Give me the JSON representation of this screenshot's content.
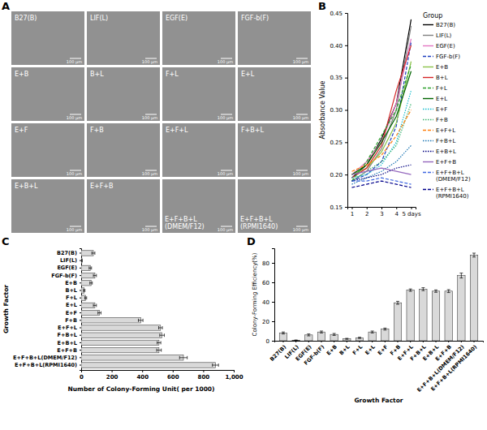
{
  "image_panel": {
    "title": "A",
    "labels": [
      "B27(B)",
      "LIF(L)",
      "EGF(E)",
      "FGF-b(F)",
      "E+B",
      "B+L",
      "F+L",
      "E+L",
      "E+F",
      "F+B",
      "E+F+L",
      "F+B+L",
      "E+B+L",
      "E+F+B",
      "E+F+B+L (DMEM/F12)",
      "E+F+B+L (RPMI1640)"
    ],
    "scale_bar": "100 μm"
  },
  "chart_data": [
    {
      "type": "line",
      "title": "B",
      "ylabel": "Absorbance Value",
      "legend_title": "Group",
      "legend": "right",
      "x": [
        1,
        2,
        3,
        4,
        5
      ],
      "xlim": [
        0.7,
        5.3
      ],
      "xticks": [
        1,
        2,
        3,
        4,
        {
          "value": 5,
          "label": "5 days"
        }
      ],
      "ylim": [
        0.15,
        0.45
      ],
      "yticks": [
        0.15,
        {
          "value": 0.2,
          "label": "0.20"
        },
        0.25,
        {
          "value": 0.3,
          "label": "0.30"
        },
        0.35,
        {
          "value": 0.4,
          "label": "0.40"
        },
        0.45
      ],
      "series": [
        {
          "name": "B27(B)",
          "color": "#000000",
          "line_style": "solid",
          "values": [
            0.195,
            0.215,
            0.255,
            0.31,
            0.44
          ]
        },
        {
          "name": "LIF(L)",
          "color": "#808080",
          "line_style": "solid",
          "values": [
            0.19,
            0.205,
            0.24,
            0.3,
            0.43
          ]
        },
        {
          "name": "EGF(E)",
          "color": "#e377c2",
          "line_style": "solid",
          "values": [
            0.2,
            0.22,
            0.25,
            0.31,
            0.41
          ]
        },
        {
          "name": "FGF-b(F)",
          "color": "#1f3fbf",
          "line_style": "dashed",
          "values": [
            0.19,
            0.2,
            0.22,
            0.275,
            0.405
          ]
        },
        {
          "name": "E+B",
          "color": "#8bc34a",
          "line_style": "solid",
          "values": [
            0.2,
            0.21,
            0.235,
            0.28,
            0.375
          ]
        },
        {
          "name": "B+L",
          "color": "#d62728",
          "line_style": "solid",
          "values": [
            0.195,
            0.21,
            0.245,
            0.33,
            0.4
          ]
        },
        {
          "name": "F+L",
          "color": "#2ca02c",
          "line_style": "dashed",
          "values": [
            0.19,
            0.22,
            0.26,
            0.3,
            0.37
          ]
        },
        {
          "name": "E+L",
          "color": "#006400",
          "line_style": "solid",
          "values": [
            0.2,
            0.215,
            0.25,
            0.29,
            0.36
          ]
        },
        {
          "name": "E+F",
          "color": "#17becf",
          "line_style": "dotted",
          "values": [
            0.195,
            0.2,
            0.215,
            0.25,
            0.33
          ]
        },
        {
          "name": "F+B",
          "color": "#3cb371",
          "line_style": "dotted",
          "values": [
            0.19,
            0.205,
            0.22,
            0.245,
            0.31
          ]
        },
        {
          "name": "E+F+L",
          "color": "#ff7f0e",
          "line_style": "dashed",
          "values": [
            0.205,
            0.215,
            0.23,
            0.26,
            0.3
          ]
        },
        {
          "name": "F+B+L",
          "color": "#1f77b4",
          "line_style": "dotted",
          "values": [
            0.185,
            0.195,
            0.205,
            0.22,
            0.245
          ]
        },
        {
          "name": "E+B+L",
          "color": "#000080",
          "line_style": "dotted",
          "values": [
            0.19,
            0.195,
            0.2,
            0.21,
            0.215
          ]
        },
        {
          "name": "E+F+B",
          "color": "#9467bd",
          "line_style": "solid",
          "values": [
            0.2,
            0.205,
            0.21,
            0.205,
            0.2
          ]
        },
        {
          "name": "E+F+B+L(DMEM/F12)",
          "color": "#4169e1",
          "line_style": "dashed",
          "values": [
            0.19,
            0.19,
            0.195,
            0.19,
            0.185
          ]
        },
        {
          "name": "E+F+B+L(RPMI1640)",
          "color": "#00008b",
          "line_style": "dashed",
          "values": [
            0.18,
            0.185,
            0.19,
            0.185,
            0.18
          ]
        }
      ]
    },
    {
      "type": "bar",
      "title": "C",
      "orientation": "horizontal",
      "color": "#d9d9d9",
      "xlabel": "Number of Colony-Forming Unit( per 1000)",
      "ylabel": "Growth Factor",
      "categories": [
        "B27(B)",
        "LIF(L)",
        "EGF(E)",
        "FGF-b(F)",
        "E+B",
        "B+L",
        "F+L",
        "E+L",
        "E+F",
        "F+B",
        "E+F+L",
        "F+B+L",
        "E+B+L",
        "E+F+B",
        "E+F+B+L(DMEM/F12)",
        "E+F+B+L(RPMI1640)"
      ],
      "values": [
        80,
        5,
        60,
        90,
        65,
        20,
        30,
        90,
        120,
        390,
        520,
        530,
        510,
        510,
        670,
        880
      ],
      "errors": [
        10,
        2,
        8,
        10,
        8,
        5,
        6,
        10,
        10,
        15,
        12,
        15,
        12,
        15,
        25,
        20
      ],
      "xlim": [
        0,
        1000
      ],
      "xticks": [
        0,
        200,
        400,
        600,
        800,
        {
          "value": 1000,
          "label": "1,000"
        }
      ]
    },
    {
      "type": "bar",
      "title": "D",
      "color": "#d9d9d9",
      "xlabel": "Growth Factor",
      "ylabel": "Colony-Forming Efficiency(%)",
      "categories": [
        "B27(B)",
        "LIF(L)",
        "EGF(E)",
        "FGF-b(F)",
        "E+B",
        "B+L",
        "F+L",
        "E+L",
        "E+F",
        "F+B",
        "E+F+L",
        "F+B+L",
        "E+B+L",
        "E+F+B",
        "E+F+B+L(DMEM/F12)",
        "E+F+B+L(RPMI1640)"
      ],
      "values": [
        8,
        0.5,
        6,
        9,
        6.5,
        2,
        3,
        9,
        12,
        39,
        52,
        53,
        51,
        51,
        67,
        88
      ],
      "errors": [
        1,
        0.3,
        1,
        1,
        1,
        0.5,
        0.6,
        1,
        1,
        1.5,
        1.2,
        1.5,
        1.2,
        1.5,
        2.5,
        2
      ],
      "ylim": [
        0,
        95
      ],
      "yticks": [
        0,
        20,
        40,
        60,
        80
      ]
    }
  ]
}
